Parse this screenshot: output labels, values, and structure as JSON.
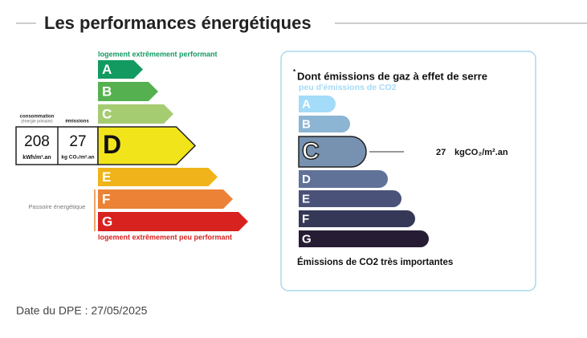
{
  "header": {
    "title": "Les performances énergétiques"
  },
  "energy": {
    "top_label": "logement extrêmement performant",
    "bottom_label": "logement extrêmement peu performant",
    "consumption_header": "consommation",
    "consumption_sub": "(énergie primaire)",
    "emissions_header": "émissions",
    "consumption_value": 208,
    "consumption_unit": "kWh/m².an",
    "emissions_value": 27,
    "emissions_unit": "kg CO₂/m².an",
    "passoire": "Passoire énergétique",
    "classes": [
      {
        "letter": "A",
        "color": "#129a61",
        "current": false
      },
      {
        "letter": "B",
        "color": "#55b14f",
        "current": false
      },
      {
        "letter": "C",
        "color": "#a6cc72",
        "current": false
      },
      {
        "letter": "D",
        "color": "#f2e41b",
        "current": true
      },
      {
        "letter": "E",
        "color": "#f0b41a",
        "current": false
      },
      {
        "letter": "F",
        "color": "#eb8236",
        "current": false
      },
      {
        "letter": "G",
        "color": "#d8221f",
        "current": false
      }
    ]
  },
  "ges": {
    "title_mark": "*",
    "title": "Dont émissions de gaz à effet de serre",
    "top_label": "peu d'émissions de CO2",
    "bottom_label": "Émissions de CO2 très importantes",
    "value": 27,
    "unit": "kgCO₂/m².an",
    "classes": [
      {
        "letter": "A",
        "color": "#a4dbf8",
        "current": false
      },
      {
        "letter": "B",
        "color": "#8cb4d3",
        "current": false
      },
      {
        "letter": "C",
        "color": "#7792b1",
        "current": true
      },
      {
        "letter": "D",
        "color": "#617299",
        "current": false
      },
      {
        "letter": "E",
        "color": "#4a5279",
        "current": false
      },
      {
        "letter": "F",
        "color": "#363857",
        "current": false
      },
      {
        "letter": "G",
        "color": "#261d34",
        "current": false
      }
    ]
  },
  "footer": {
    "date_label": "Date du DPE : 27/05/2025"
  }
}
